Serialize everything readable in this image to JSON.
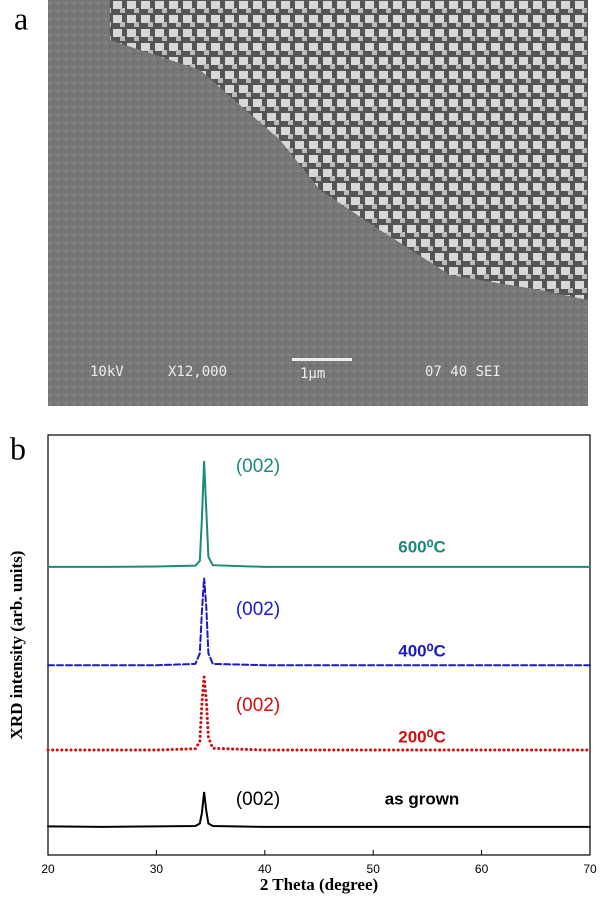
{
  "panel_a": {
    "label": "a",
    "sem_labels": [
      "10kV",
      "X12,000",
      "1μm",
      "07 40 SEI"
    ]
  },
  "chart_data": {
    "type": "line",
    "panel_label": "b",
    "x_label": "2 Theta (degree)",
    "y_label": "XRD intensity (arb. units)",
    "x": [
      20,
      25,
      30,
      33.6,
      34.0,
      34.2,
      34.4,
      34.6,
      34.8,
      35.2,
      40,
      50,
      60,
      70
    ],
    "xlim": [
      20,
      70
    ],
    "xticks": [
      20,
      30,
      40,
      50,
      60,
      70
    ],
    "ylim": [
      0,
      100
    ],
    "series": [
      {
        "name": "as grown",
        "peak_label": "(002)",
        "color": "#000000",
        "line_style": "solid",
        "values": [
          6.8,
          6.7,
          6.8,
          6.9,
          7.5,
          10,
          15,
          10.5,
          7.5,
          6.9,
          6.7,
          6.7,
          6.7,
          6.7
        ]
      },
      {
        "name": "200⁰C",
        "peak_label": "(002)",
        "color": "#cc1111",
        "line_style": "dotted",
        "values": [
          25,
          25,
          25,
          25.3,
          27,
          36,
          42.4,
          37,
          28,
          25.4,
          25,
          25,
          25,
          25
        ]
      },
      {
        "name": "400⁰C",
        "peak_label": "(002)",
        "color": "#1a1acc",
        "line_style": "dashed",
        "values": [
          45.2,
          45.2,
          45.2,
          45.5,
          48,
          58,
          66,
          59,
          48,
          45.5,
          45.2,
          45.2,
          45.2,
          45.2
        ]
      },
      {
        "name": "600⁰C",
        "peak_label": "(002)",
        "color": "#1a8a7a",
        "line_style": "solid",
        "values": [
          68.6,
          68.6,
          68.7,
          68.9,
          70,
          80,
          93.8,
          82,
          71,
          69,
          68.6,
          68.6,
          68.6,
          68.6
        ]
      }
    ]
  }
}
